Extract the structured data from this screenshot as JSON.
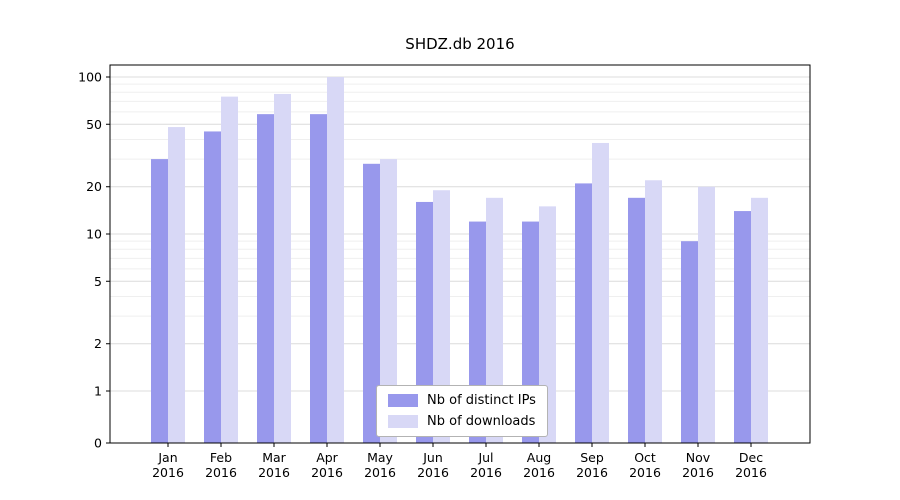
{
  "title": "SHDZ.db 2016",
  "chart_data": {
    "type": "bar",
    "title": "SHDZ.db 2016",
    "xlabel": "",
    "ylabel": "",
    "categories": [
      "Jan 2016",
      "Feb 2016",
      "Mar 2016",
      "Apr 2016",
      "May 2016",
      "Jun 2016",
      "Jul 2016",
      "Aug 2016",
      "Sep 2016",
      "Oct 2016",
      "Nov 2016",
      "Dec 2016"
    ],
    "series": [
      {
        "name": "Nb of distinct IPs",
        "color": "#9898ec",
        "values": [
          30,
          45,
          58,
          58,
          28,
          16,
          12,
          12,
          21,
          17,
          9,
          14
        ]
      },
      {
        "name": "Nb of downloads",
        "color": "#d8d8f6",
        "values": [
          48,
          75,
          78,
          100,
          30,
          19,
          17,
          15,
          38,
          22,
          20,
          17
        ]
      }
    ],
    "yticks": [
      0,
      1,
      2,
      5,
      10,
      20,
      50,
      100
    ],
    "grid_minor": [
      3,
      4,
      6,
      7,
      8,
      9,
      30,
      40,
      60,
      70,
      80,
      90
    ],
    "yscale": "symlog",
    "ylim": [
      0,
      115
    ],
    "grid": true,
    "legend_position": "lower center"
  }
}
